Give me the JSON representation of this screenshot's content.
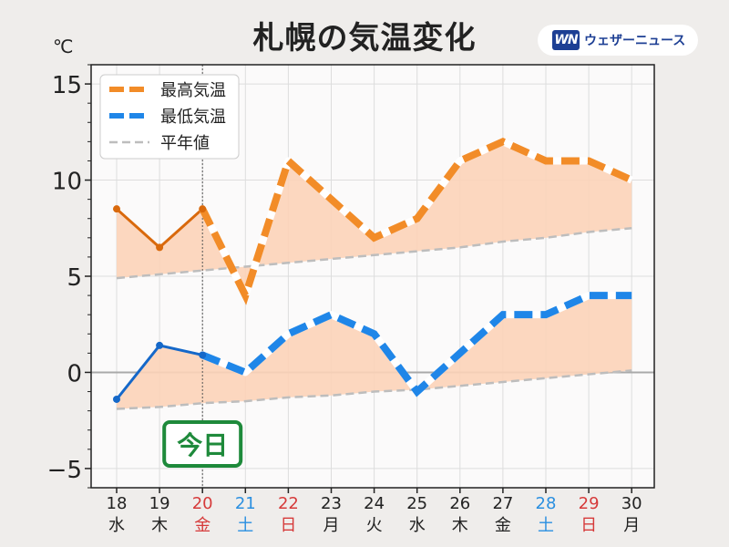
{
  "title": "札幌の気温変化",
  "brand": {
    "logo": "WN",
    "name": "ウェザーニュース"
  },
  "colors": {
    "max": "#f28c28",
    "max_actual": "#d9690c",
    "min": "#1f86e8",
    "min_actual": "#1568c9",
    "normal": "#bdbdbd",
    "fill": "#fcd3b8",
    "saturday": "#2a8fe0",
    "sunday": "#d63a3a",
    "weekday": "#222222",
    "today_badge": "#1e8a3b"
  },
  "today_label": "今日",
  "chart_data": {
    "type": "line",
    "unit": "℃",
    "ylim": [
      -6.0,
      16.0
    ],
    "yticks": [
      -5,
      0,
      5,
      10,
      15
    ],
    "ytick_labels": [
      "−5",
      "0",
      "5",
      "10",
      "15"
    ],
    "grid": true,
    "legend_position": "top-left",
    "today_index": 2,
    "days": [
      {
        "date": "18",
        "weekday": "水",
        "type": "weekday"
      },
      {
        "date": "19",
        "weekday": "木",
        "type": "weekday"
      },
      {
        "date": "20",
        "weekday": "金",
        "type": "holiday"
      },
      {
        "date": "21",
        "weekday": "土",
        "type": "saturday"
      },
      {
        "date": "22",
        "weekday": "日",
        "type": "sunday"
      },
      {
        "date": "23",
        "weekday": "月",
        "type": "weekday"
      },
      {
        "date": "24",
        "weekday": "火",
        "type": "weekday"
      },
      {
        "date": "25",
        "weekday": "水",
        "type": "weekday"
      },
      {
        "date": "26",
        "weekday": "木",
        "type": "weekday"
      },
      {
        "date": "27",
        "weekday": "金",
        "type": "weekday"
      },
      {
        "date": "28",
        "weekday": "土",
        "type": "saturday"
      },
      {
        "date": "29",
        "weekday": "日",
        "type": "sunday"
      },
      {
        "date": "30",
        "weekday": "月",
        "type": "weekday"
      }
    ],
    "series": [
      {
        "key": "max",
        "name": "最高気温",
        "values": [
          8.5,
          6.5,
          8.5,
          4.0,
          11.0,
          9.0,
          7.0,
          8.0,
          11.0,
          12.0,
          11.0,
          11.0,
          10.0
        ]
      },
      {
        "key": "min",
        "name": "最低気温",
        "values": [
          -1.4,
          1.4,
          0.9,
          0.0,
          2.0,
          3.0,
          2.0,
          -1.0,
          1.0,
          3.0,
          3.0,
          4.0,
          4.0
        ]
      },
      {
        "key": "normal_max",
        "name": "平年値",
        "values": [
          4.9,
          5.1,
          5.3,
          5.5,
          5.7,
          5.9,
          6.1,
          6.3,
          6.5,
          6.8,
          7.0,
          7.3,
          7.5
        ]
      },
      {
        "key": "normal_min",
        "name": "",
        "values": [
          -1.9,
          -1.8,
          -1.6,
          -1.5,
          -1.3,
          -1.2,
          -1.0,
          -0.9,
          -0.7,
          -0.5,
          -0.3,
          -0.1,
          0.1
        ]
      }
    ]
  }
}
